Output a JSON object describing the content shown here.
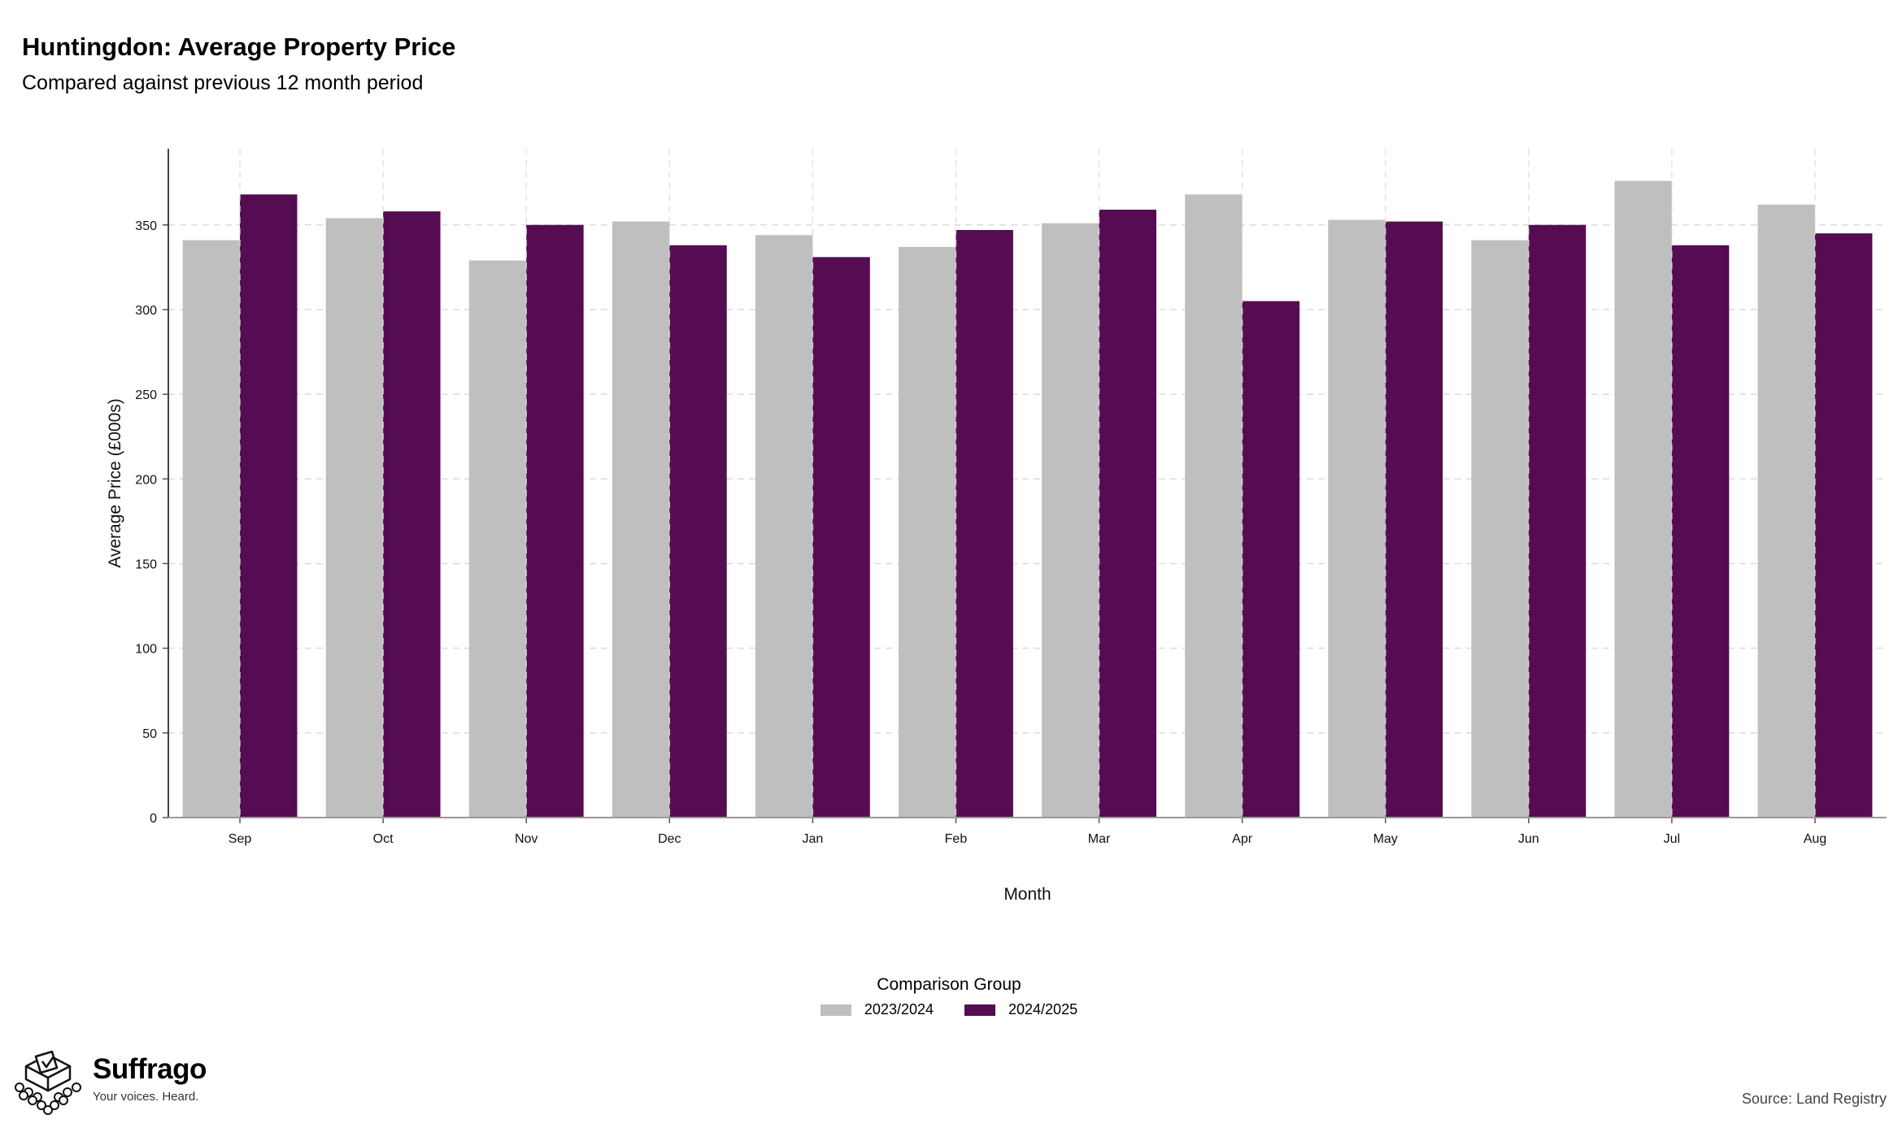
{
  "header": {
    "title": "Huntingdon: Average Property Price",
    "subtitle": "Compared against previous 12 month period"
  },
  "chart_data": {
    "type": "bar",
    "xlabel": "Month",
    "ylabel": "Average Price (£000s)",
    "ylim": [
      0,
      395
    ],
    "yticks": [
      0,
      50,
      100,
      150,
      200,
      250,
      300,
      350
    ],
    "grid": true,
    "legend_position": "bottom",
    "legend_title": "Comparison Group",
    "categories": [
      "Sep",
      "Oct",
      "Nov",
      "Dec",
      "Jan",
      "Feb",
      "Mar",
      "Apr",
      "May",
      "Jun",
      "Jul",
      "Aug"
    ],
    "series": [
      {
        "name": "2023/2024",
        "color": "#bfbfbf",
        "values": [
          341,
          354,
          329,
          352,
          344,
          337,
          351,
          368,
          353,
          341,
          376,
          362
        ]
      },
      {
        "name": "2024/2025",
        "color": "#560c52",
        "values": [
          368,
          358,
          350,
          338,
          331,
          347,
          359,
          305,
          352,
          350,
          338,
          345
        ]
      }
    ]
  },
  "brand": {
    "name": "Suffrago",
    "tagline": "Your voices. Heard.",
    "logo_icon": "ballot-box-icon"
  },
  "footer": {
    "source": "Source: Land Registry"
  }
}
